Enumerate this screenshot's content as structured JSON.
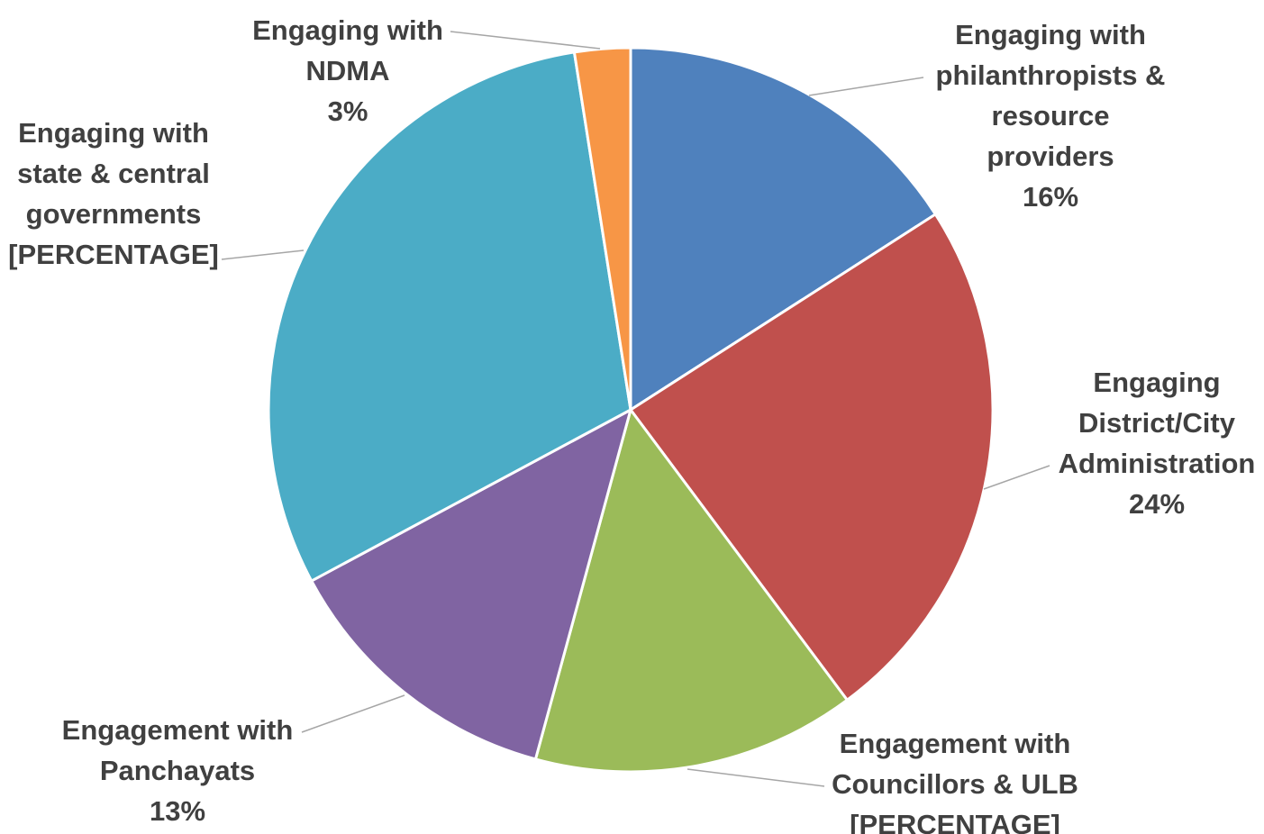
{
  "chart_data": {
    "type": "pie",
    "title": "",
    "start_angle_deg": 0,
    "direction": "clockwise",
    "slices": [
      {
        "name": "Engaging with philanthropists & resource providers",
        "label_lines": [
          "Engaging with",
          "philanthropists &",
          "resource",
          "providers"
        ],
        "value_label": "16%",
        "value": 16,
        "color": "#4f81bd"
      },
      {
        "name": "Engaging District/City Administration",
        "label_lines": [
          "Engaging",
          "District/City",
          "Administration"
        ],
        "value_label": "24%",
        "value": 24,
        "color": "#c0504d"
      },
      {
        "name": "Engagement with Councillors & ULB",
        "label_lines": [
          "Engagement with",
          "Councillors & ULB"
        ],
        "value_label": "[PERCENTAGE]",
        "value": 14.5,
        "color": "#9bbb59"
      },
      {
        "name": "Engagement with Panchayats",
        "label_lines": [
          "Engagement with",
          "Panchayats"
        ],
        "value_label": "13%",
        "value": 13,
        "color": "#8064a2"
      },
      {
        "name": "Engaging with state & central governments",
        "label_lines": [
          "Engaging with",
          "state & central",
          "governments"
        ],
        "value_label": "[PERCENTAGE]",
        "value": 30.5,
        "color": "#4bacc6"
      },
      {
        "name": "Engaging with NDMA",
        "label_lines": [
          "Engaging with",
          "NDMA"
        ],
        "value_label": "3%",
        "value": 2.5,
        "color": "#f79646"
      }
    ]
  }
}
